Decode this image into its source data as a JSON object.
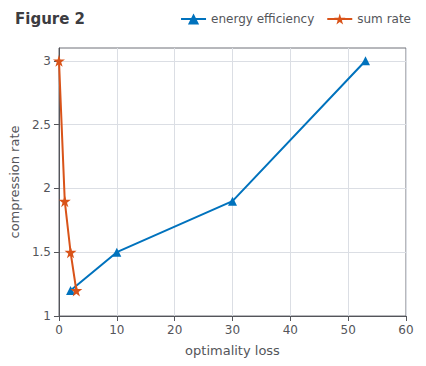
{
  "chart_data": {
    "type": "line",
    "title": "Figure 2",
    "xlabel": "optimality loss",
    "ylabel": "compression rate",
    "series": [
      {
        "name": "energy efficiency",
        "color": "#0072bd",
        "marker": "triangle",
        "line_style": "solid",
        "x": [
          2,
          10,
          30,
          53
        ],
        "values": [
          1.2,
          1.5,
          1.9,
          3.0
        ]
      },
      {
        "name": "sum rate",
        "color": "#d95319",
        "marker": "star",
        "line_style": "solid",
        "x": [
          0,
          1,
          2,
          3
        ],
        "values": [
          3.0,
          1.9,
          1.5,
          1.2
        ]
      }
    ],
    "xlim": [
      0,
      60
    ],
    "xticks": [
      0,
      10,
      20,
      30,
      40,
      50,
      60
    ],
    "ylim": [
      1.0,
      3.1
    ],
    "yticks": [
      1,
      1.5,
      2,
      2.5,
      3
    ],
    "grid": true,
    "legend": "upper right"
  }
}
